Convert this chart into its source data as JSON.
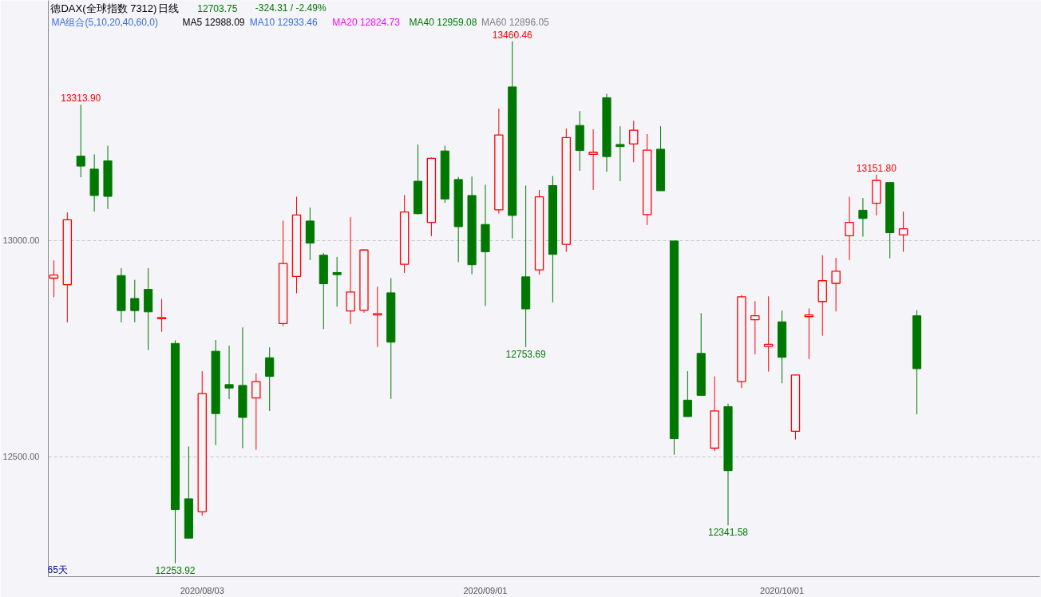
{
  "chart_data": {
    "type": "candlestick",
    "title": "德DAX(全球指数 7312)",
    "subtitle": "日线",
    "categories": [
      null,
      null,
      null,
      null,
      null,
      null,
      null,
      null,
      null,
      null,
      null,
      "2020/08/03",
      null,
      null,
      null,
      null,
      null,
      null,
      null,
      null,
      null,
      null,
      null,
      null,
      null,
      null,
      null,
      null,
      null,
      null,
      null,
      null,
      "2020/09/01",
      null,
      null,
      null,
      null,
      null,
      null,
      null,
      null,
      null,
      null,
      null,
      null,
      null,
      null,
      null,
      null,
      null,
      null,
      null,
      null,
      null,
      "2020/10/01",
      null,
      null,
      null,
      null,
      null,
      null,
      null,
      null,
      null,
      null
    ],
    "ohlc": [
      [
        12913,
        12954,
        12869,
        12920
      ],
      [
        12898,
        13065,
        12811,
        13048
      ],
      [
        13195,
        13313.9,
        13146,
        13172
      ],
      [
        13165,
        13199,
        13067,
        13104
      ],
      [
        13184,
        13219,
        13073,
        13102
      ],
      [
        12919,
        12936,
        12811,
        12838
      ],
      [
        12866,
        12909,
        12811,
        12838
      ],
      [
        12887,
        12936,
        12747,
        12835
      ],
      [
        12819,
        12865,
        12789,
        12822
      ],
      [
        12762,
        12769,
        12253.92,
        12378
      ],
      [
        12403,
        12524,
        12312,
        12312
      ],
      [
        12373,
        12698,
        12364,
        12646
      ],
      [
        12744,
        12770,
        12527,
        12600
      ],
      [
        12667,
        12757,
        12633,
        12659
      ],
      [
        12665,
        12799,
        12520,
        12591
      ],
      [
        12636,
        12693,
        12516,
        12674
      ],
      [
        12729,
        12753,
        12606,
        12686
      ],
      [
        12808,
        13046,
        12802,
        12947
      ],
      [
        12917,
        13101,
        12878,
        13059
      ],
      [
        13045,
        13076,
        12955,
        12994
      ],
      [
        12966,
        12971,
        12795,
        12900
      ],
      [
        12926,
        12962,
        12847,
        12921
      ],
      [
        12837,
        13054,
        12807,
        12881
      ],
      [
        12839,
        12980,
        12833,
        12978
      ],
      [
        12828,
        12893,
        12754,
        12831
      ],
      [
        12879,
        12913,
        12634,
        12765
      ],
      [
        12945,
        13105,
        12925,
        13066
      ],
      [
        13137,
        13222,
        13060,
        13062
      ],
      [
        13042,
        13192,
        13010,
        13190
      ],
      [
        13207,
        13219,
        13087,
        13096
      ],
      [
        13141,
        13147,
        12950,
        13032
      ],
      [
        13104,
        13148,
        12922,
        12944
      ],
      [
        13037,
        13129,
        12849,
        12974
      ],
      [
        13071,
        13305,
        13062,
        13244
      ],
      [
        13355,
        13460.46,
        13005,
        13058
      ],
      [
        12916,
        13127,
        12753.69,
        12842
      ],
      [
        12932,
        13117,
        12921,
        13101
      ],
      [
        13127,
        13149,
        12857,
        12968
      ],
      [
        12991,
        13259,
        12974,
        13238
      ],
      [
        13266,
        13299,
        13161,
        13208
      ],
      [
        13199,
        13257,
        13117,
        13204
      ],
      [
        13330,
        13339,
        13159,
        13194
      ],
      [
        13222,
        13264,
        13137,
        13217
      ],
      [
        13223,
        13277,
        13181,
        13255
      ],
      [
        13060,
        13246,
        13036,
        13209
      ],
      [
        13211,
        13264,
        13115,
        13115
      ],
      [
        12999,
        12999,
        12505,
        12542
      ],
      [
        12631,
        12698,
        12593,
        12593
      ],
      [
        12739,
        12832,
        12642,
        12642
      ],
      [
        12520,
        12686,
        12513,
        12606
      ],
      [
        12616,
        12623,
        12341.58,
        12468
      ],
      [
        12674,
        12874,
        12659,
        12870
      ],
      [
        12817,
        12860,
        12737,
        12826
      ],
      [
        12755,
        12871,
        12697,
        12760
      ],
      [
        12812,
        12838,
        12670,
        12730
      ],
      [
        12559,
        12690,
        12540,
        12689
      ],
      [
        12824,
        12843,
        12726,
        12828
      ],
      [
        12859,
        12966,
        12780,
        12907
      ],
      [
        12901,
        12960,
        12836,
        12929
      ],
      [
        13011,
        13101,
        12955,
        13042
      ],
      [
        13070,
        13098,
        13009,
        13051
      ],
      [
        13086,
        13151.8,
        13058,
        13139
      ],
      [
        13134,
        13134,
        12959,
        13018
      ],
      [
        13013,
        13067,
        12974,
        13027
      ],
      [
        12826,
        12839,
        12598,
        12703.75
      ]
    ],
    "ylim": [
      12223,
      13555
    ],
    "yticks": [
      {
        "value": 12500,
        "label": "12500.00"
      },
      {
        "value": 13000,
        "label": "13000.00"
      }
    ],
    "grid": "y",
    "annotations": [
      "12703.75",
      "-324.31 / -2.49%",
      "MA组合(5,10,20,40,60,0)",
      "MA5 12988.09",
      "MA10 12933.46",
      "MA20 12824.73",
      "MA40 12959.08",
      "MA60 12896.05",
      "65天",
      {
        "text": "13313.90",
        "y": 13313.9
      },
      {
        "text": "12253.92",
        "y": 12253.92
      },
      {
        "text": "13460.46",
        "y": 13460.46
      },
      {
        "text": "12753.69",
        "y": 12753.69
      },
      {
        "text": "12341.58",
        "y": 12341.58
      },
      {
        "text": "13151.80",
        "y": 13151.8
      }
    ]
  }
}
